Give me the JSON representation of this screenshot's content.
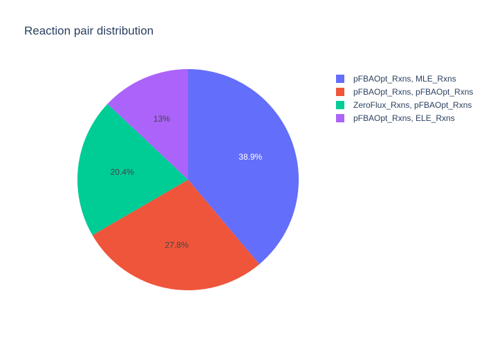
{
  "chart_data": {
    "type": "pie",
    "title": "Reaction pair distribution",
    "categories": [
      "pFBAOpt_Rxns, MLE_Rxns",
      "pFBAOpt_Rxns, pFBAOpt_Rxns",
      "ZeroFlux_Rxns, pFBAOpt_Rxns",
      "pFBAOpt_Rxns, ELE_Rxns"
    ],
    "values": [
      38.9,
      27.8,
      20.4,
      13.0
    ],
    "value_labels": [
      "38.9%",
      "27.8%",
      "20.4%",
      "13%"
    ],
    "colors": [
      "#636efa",
      "#ef553b",
      "#00cc96",
      "#ab63fa"
    ],
    "label_colors": [
      "#ffffff",
      "#444444",
      "#444444",
      "#444444"
    ],
    "legend_placement": "top-right"
  }
}
